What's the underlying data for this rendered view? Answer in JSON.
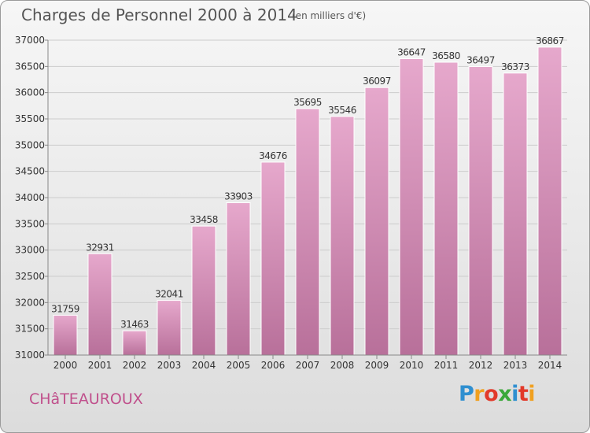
{
  "header": {
    "title": "Charges de Personnel 2000 à 2014",
    "subtitle": "(en milliers d'€)"
  },
  "footer": {
    "city": "CHâTEAUROUX",
    "logo_letters": [
      "P",
      "r",
      "o",
      "x",
      "i",
      "t",
      "i"
    ],
    "logo_colors": [
      "#2f8fd0",
      "#f0a020",
      "#e23a2a",
      "#3aa83a",
      "#2f8fd0",
      "#e23a2a",
      "#f0a020"
    ]
  },
  "colors": {
    "bar_top": "#e6a8cc",
    "bar_bottom": "#b8709a",
    "grid": "#cccccc",
    "axis_text": "#333333"
  },
  "chart_data": {
    "type": "bar",
    "title": "Charges de Personnel 2000 à 2014",
    "subtitle": "(en milliers d'€)",
    "categories": [
      "2000",
      "2001",
      "2002",
      "2003",
      "2004",
      "2005",
      "2006",
      "2007",
      "2008",
      "2009",
      "2010",
      "2011",
      "2012",
      "2013",
      "2014"
    ],
    "values": [
      31759,
      32931,
      31463,
      32041,
      33458,
      33903,
      34676,
      35695,
      35546,
      36097,
      36647,
      36580,
      36497,
      36373,
      36867
    ],
    "ylim": [
      31000,
      37000
    ],
    "yticks": [
      31000,
      31500,
      32000,
      32500,
      33000,
      33500,
      34000,
      34500,
      35000,
      35500,
      36000,
      36500,
      37000
    ],
    "grid": true,
    "xlabel": "",
    "ylabel": ""
  }
}
